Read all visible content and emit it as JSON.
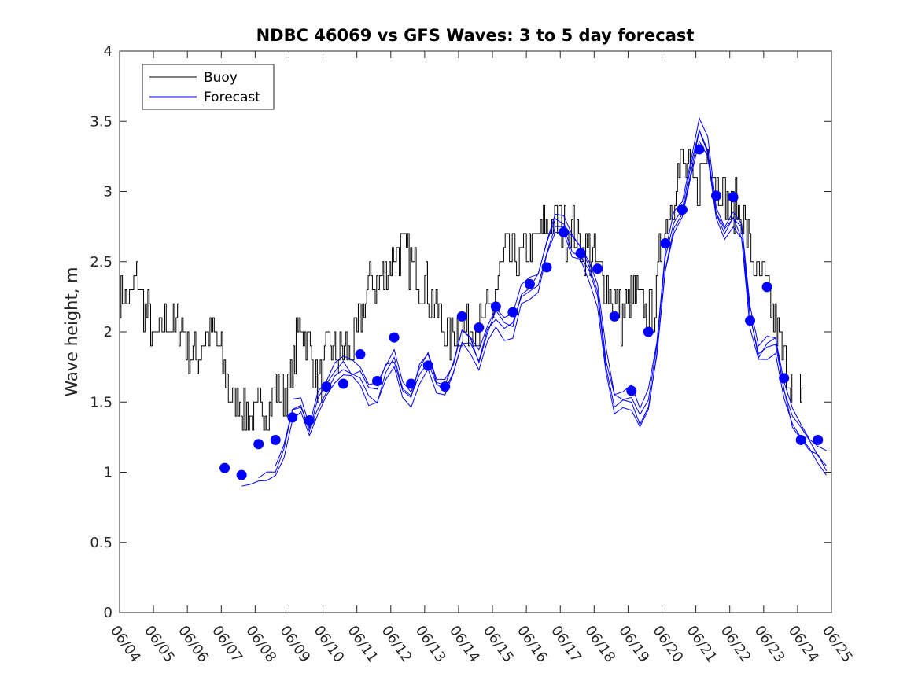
{
  "chart_data": {
    "type": "line",
    "title": "NDBC 46069 vs GFS Waves: 3 to 5 day forecast",
    "xlabel": "",
    "ylabel": "Wave height, m",
    "xlim": [
      "06/04",
      "06/25"
    ],
    "ylim": [
      0,
      4
    ],
    "x_ticks": [
      "06/04",
      "06/05",
      "06/06",
      "06/07",
      "06/08",
      "06/09",
      "06/10",
      "06/11",
      "06/12",
      "06/13",
      "06/14",
      "06/15",
      "06/16",
      "06/17",
      "06/18",
      "06/19",
      "06/20",
      "06/21",
      "06/22",
      "06/23",
      "06/24",
      "06/25"
    ],
    "y_ticks": [
      "0",
      "0.5",
      "1",
      "1.5",
      "2",
      "2.5",
      "3",
      "3.5",
      "4"
    ],
    "grid": false,
    "legend_position": "top-left",
    "x_unit": "day offset from 06/04",
    "colors": {
      "buoy": "#000000",
      "forecast": "#0000ff"
    },
    "series": [
      {
        "name": "Buoy",
        "style": "black step line",
        "anchors": [
          [
            0.0,
            2.3
          ],
          [
            0.3,
            2.2
          ],
          [
            0.5,
            2.4
          ],
          [
            0.7,
            2.2
          ],
          [
            0.9,
            2.1
          ],
          [
            1.0,
            1.9
          ],
          [
            1.2,
            2.0
          ],
          [
            1.4,
            2.1
          ],
          [
            1.6,
            2.0
          ],
          [
            1.8,
            2.1
          ],
          [
            2.0,
            1.9
          ],
          [
            2.2,
            1.8
          ],
          [
            2.4,
            1.9
          ],
          [
            2.6,
            2.0
          ],
          [
            2.8,
            2.0
          ],
          [
            3.0,
            1.8
          ],
          [
            3.2,
            1.6
          ],
          [
            3.4,
            1.5
          ],
          [
            3.6,
            1.5
          ],
          [
            3.8,
            1.4
          ],
          [
            4.0,
            1.4
          ],
          [
            4.2,
            1.45
          ],
          [
            4.4,
            1.5
          ],
          [
            4.6,
            1.6
          ],
          [
            4.8,
            1.55
          ],
          [
            5.0,
            1.6
          ],
          [
            5.2,
            1.9
          ],
          [
            5.3,
            2.1
          ],
          [
            5.5,
            2.0
          ],
          [
            5.7,
            1.75
          ],
          [
            5.9,
            1.6
          ],
          [
            6.0,
            1.7
          ],
          [
            6.2,
            1.9
          ],
          [
            6.4,
            1.8
          ],
          [
            6.6,
            1.9
          ],
          [
            6.8,
            1.85
          ],
          [
            7.0,
            2.0
          ],
          [
            7.2,
            2.2
          ],
          [
            7.4,
            2.4
          ],
          [
            7.6,
            2.3
          ],
          [
            7.8,
            2.4
          ],
          [
            8.0,
            2.5
          ],
          [
            8.2,
            2.6
          ],
          [
            8.4,
            2.55
          ],
          [
            8.6,
            2.5
          ],
          [
            8.8,
            2.4
          ],
          [
            9.0,
            2.35
          ],
          [
            9.2,
            2.2
          ],
          [
            9.4,
            2.15
          ],
          [
            9.6,
            2.0
          ],
          [
            9.8,
            1.95
          ],
          [
            10.0,
            2.05
          ],
          [
            10.2,
            2.0
          ],
          [
            10.4,
            2.1
          ],
          [
            10.6,
            2.0
          ],
          [
            10.8,
            2.1
          ],
          [
            11.0,
            2.2
          ],
          [
            11.2,
            2.4
          ],
          [
            11.4,
            2.6
          ],
          [
            11.6,
            2.5
          ],
          [
            11.8,
            2.5
          ],
          [
            12.0,
            2.6
          ],
          [
            12.2,
            2.6
          ],
          [
            12.4,
            2.7
          ],
          [
            12.6,
            2.75
          ],
          [
            12.8,
            2.8
          ],
          [
            13.0,
            2.8
          ],
          [
            13.2,
            2.7
          ],
          [
            13.4,
            2.75
          ],
          [
            13.6,
            2.6
          ],
          [
            13.8,
            2.6
          ],
          [
            14.0,
            2.5
          ],
          [
            14.2,
            2.4
          ],
          [
            14.4,
            2.3
          ],
          [
            14.6,
            2.2
          ],
          [
            14.8,
            2.1
          ],
          [
            15.0,
            2.2
          ],
          [
            15.2,
            2.25
          ],
          [
            15.4,
            2.2
          ],
          [
            15.6,
            2.1
          ],
          [
            15.8,
            2.2
          ],
          [
            16.0,
            2.7
          ],
          [
            16.2,
            2.8
          ],
          [
            16.4,
            3.1
          ],
          [
            16.6,
            3.2
          ],
          [
            16.8,
            3.1
          ],
          [
            17.0,
            3.0
          ],
          [
            17.2,
            3.2
          ],
          [
            17.4,
            3.3
          ],
          [
            17.6,
            3.1
          ],
          [
            17.8,
            3.0
          ],
          [
            18.0,
            2.85
          ],
          [
            18.2,
            2.9
          ],
          [
            18.4,
            2.8
          ],
          [
            18.6,
            2.6
          ],
          [
            18.8,
            2.4
          ],
          [
            19.0,
            2.35
          ],
          [
            19.2,
            2.15
          ],
          [
            19.4,
            2.0
          ],
          [
            19.6,
            1.8
          ],
          [
            19.8,
            1.65
          ],
          [
            20.0,
            1.6
          ],
          [
            20.2,
            1.6
          ]
        ]
      },
      {
        "name": "Forecast",
        "style": "blue thin lines, four overlapping forecast runs",
        "anchors": [
          [
            3.6,
            0.97
          ],
          [
            3.9,
            0.97
          ],
          [
            4.2,
            0.98
          ],
          [
            4.5,
            1.02
          ],
          [
            4.8,
            1.1
          ],
          [
            5.0,
            1.35
          ],
          [
            5.2,
            1.55
          ],
          [
            5.4,
            1.45
          ],
          [
            5.6,
            1.3
          ],
          [
            5.8,
            1.45
          ],
          [
            6.0,
            1.6
          ],
          [
            6.2,
            1.65
          ],
          [
            6.4,
            1.7
          ],
          [
            6.6,
            1.75
          ],
          [
            6.8,
            1.7
          ],
          [
            7.0,
            1.75
          ],
          [
            7.2,
            1.6
          ],
          [
            7.5,
            1.5
          ],
          [
            7.8,
            1.65
          ],
          [
            8.0,
            1.9
          ],
          [
            8.2,
            1.7
          ],
          [
            8.4,
            1.55
          ],
          [
            8.6,
            1.55
          ],
          [
            8.8,
            1.65
          ],
          [
            9.0,
            1.9
          ],
          [
            9.2,
            1.75
          ],
          [
            9.4,
            1.6
          ],
          [
            9.6,
            1.6
          ],
          [
            9.8,
            1.65
          ],
          [
            10.0,
            2.0
          ],
          [
            10.2,
            1.95
          ],
          [
            10.4,
            1.9
          ],
          [
            10.6,
            1.8
          ],
          [
            10.8,
            1.95
          ],
          [
            11.0,
            2.15
          ],
          [
            11.2,
            2.1
          ],
          [
            11.4,
            2.0
          ],
          [
            11.6,
            2.05
          ],
          [
            11.8,
            2.25
          ],
          [
            12.0,
            2.3
          ],
          [
            12.2,
            2.3
          ],
          [
            12.4,
            2.4
          ],
          [
            12.6,
            2.6
          ],
          [
            12.8,
            2.75
          ],
          [
            13.0,
            2.85
          ],
          [
            13.2,
            2.7
          ],
          [
            13.4,
            2.6
          ],
          [
            13.6,
            2.55
          ],
          [
            13.8,
            2.45
          ],
          [
            14.0,
            2.4
          ],
          [
            14.2,
            2.1
          ],
          [
            14.4,
            1.7
          ],
          [
            14.6,
            1.5
          ],
          [
            14.8,
            1.5
          ],
          [
            15.0,
            1.6
          ],
          [
            15.2,
            1.45
          ],
          [
            15.4,
            1.35
          ],
          [
            15.6,
            1.5
          ],
          [
            15.8,
            1.75
          ],
          [
            16.0,
            2.3
          ],
          [
            16.2,
            2.65
          ],
          [
            16.4,
            2.8
          ],
          [
            16.6,
            2.85
          ],
          [
            16.8,
            3.1
          ],
          [
            17.0,
            3.3
          ],
          [
            17.2,
            3.6
          ],
          [
            17.4,
            3.2
          ],
          [
            17.6,
            2.85
          ],
          [
            17.8,
            2.7
          ],
          [
            18.0,
            2.65
          ],
          [
            18.2,
            2.95
          ],
          [
            18.4,
            2.6
          ],
          [
            18.6,
            2.1
          ],
          [
            18.8,
            1.85
          ],
          [
            19.0,
            1.75
          ],
          [
            19.2,
            2.05
          ],
          [
            19.4,
            1.9
          ],
          [
            19.6,
            1.6
          ],
          [
            19.8,
            1.4
          ],
          [
            20.0,
            1.3
          ],
          [
            20.2,
            1.25
          ],
          [
            20.4,
            1.2
          ],
          [
            20.6,
            1.12
          ],
          [
            20.8,
            1.07
          ],
          [
            21.0,
            1.03
          ]
        ]
      },
      {
        "name": "Forecast points",
        "style": "blue filled circles",
        "points": [
          [
            3.1,
            1.03
          ],
          [
            3.6,
            0.98
          ],
          [
            4.1,
            1.2
          ],
          [
            4.6,
            1.23
          ],
          [
            5.1,
            1.39
          ],
          [
            5.6,
            1.37
          ],
          [
            6.1,
            1.61
          ],
          [
            6.6,
            1.63
          ],
          [
            7.1,
            1.84
          ],
          [
            7.6,
            1.65
          ],
          [
            8.1,
            1.96
          ],
          [
            8.6,
            1.63
          ],
          [
            9.1,
            1.76
          ],
          [
            9.6,
            1.61
          ],
          [
            10.1,
            2.11
          ],
          [
            10.6,
            2.03
          ],
          [
            11.1,
            2.18
          ],
          [
            11.6,
            2.14
          ],
          [
            12.1,
            2.34
          ],
          [
            12.6,
            2.46
          ],
          [
            13.1,
            2.71
          ],
          [
            13.6,
            2.56
          ],
          [
            14.1,
            2.45
          ],
          [
            14.6,
            2.11
          ],
          [
            15.1,
            1.58
          ],
          [
            15.6,
            2.0
          ],
          [
            16.1,
            2.63
          ],
          [
            16.6,
            2.87
          ],
          [
            17.1,
            3.3
          ],
          [
            17.6,
            2.97
          ],
          [
            18.1,
            2.96
          ],
          [
            18.6,
            2.08
          ],
          [
            19.1,
            2.32
          ],
          [
            19.6,
            1.67
          ],
          [
            20.1,
            1.23
          ],
          [
            20.6,
            1.23
          ]
        ]
      }
    ]
  }
}
